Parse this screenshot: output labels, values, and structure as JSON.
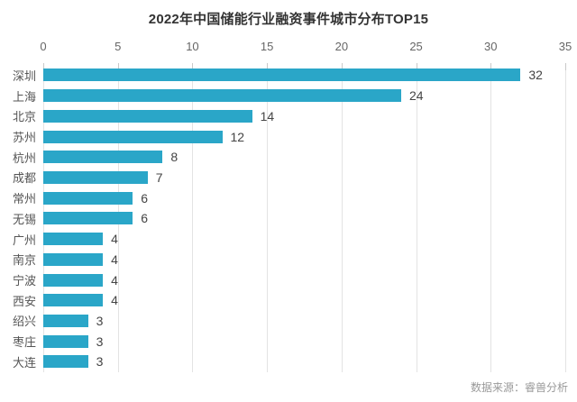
{
  "title": "2022年中国储能行业融资事件城市分布TOP15",
  "source": "数据来源：睿兽分析",
  "colors": {
    "bar": "#2aa6c8",
    "title_text": "#333333",
    "axis_text": "#666666",
    "label_text": "#555555",
    "value_text": "#444444",
    "gridline": "#e3e3e3",
    "background": "#ffffff",
    "source_text": "#999999"
  },
  "chart_data": {
    "type": "bar",
    "orientation": "horizontal",
    "title": "2022年中国储能行业融资事件城市分布TOP15",
    "categories": [
      "深圳",
      "上海",
      "北京",
      "苏州",
      "杭州",
      "成都",
      "常州",
      "无锡",
      "广州",
      "南京",
      "宁波",
      "西安",
      "绍兴",
      "枣庄",
      "大连"
    ],
    "values": [
      32,
      24,
      14,
      12,
      8,
      7,
      6,
      6,
      4,
      4,
      4,
      4,
      3,
      3,
      3
    ],
    "xlabel": "",
    "ylabel": "",
    "xlim": [
      0,
      35
    ],
    "xticks": [
      0,
      5,
      10,
      15,
      20,
      25,
      30,
      35
    ],
    "grid": true,
    "axis_position": "top",
    "data_labels": true,
    "legend": false,
    "source": "数据来源：睿兽分析"
  }
}
